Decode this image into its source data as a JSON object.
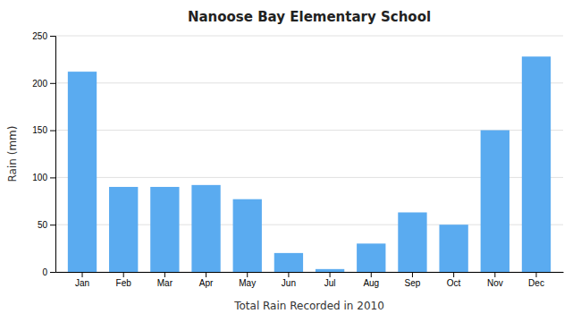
{
  "chart_data": {
    "type": "bar",
    "title": "Nanoose Bay Elementary School",
    "xlabel": "Total Rain Recorded in 2010",
    "ylabel": "Rain (mm)",
    "categories": [
      "Jan",
      "Feb",
      "Mar",
      "Apr",
      "May",
      "Jun",
      "Jul",
      "Aug",
      "Sep",
      "Oct",
      "Nov",
      "Dec"
    ],
    "values": [
      212,
      90,
      90,
      92,
      77,
      20,
      3,
      30,
      63,
      50,
      150,
      228
    ],
    "color": "#5aabf0",
    "ylim": [
      0,
      250
    ],
    "yticks": [
      0,
      50,
      100,
      150,
      200,
      250
    ],
    "grid": true
  }
}
